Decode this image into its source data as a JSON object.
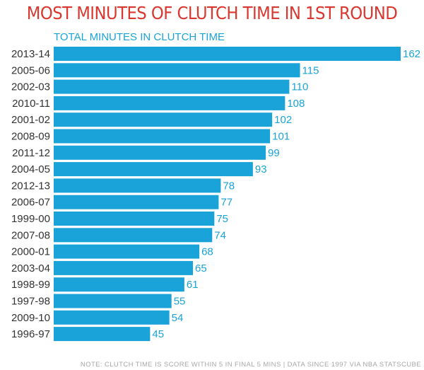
{
  "title": "MOST MINUTES OF CLUTCH TIME IN 1ST ROUND",
  "note": "NOTE: CLUTCH TIME IS SCORE WITHIN 5 IN FINAL 5 MINS | DATA SINCE 1997 VIA NBA STATSCUBE",
  "colors": {
    "title": "#d8382f",
    "bar": "#1aa3d9",
    "value_label": "#1aa3d9",
    "category_label": "#333333",
    "note": "#a8a8a8"
  },
  "chart_data": {
    "type": "bar",
    "orientation": "horizontal",
    "title": "MOST MINUTES OF CLUTCH TIME IN 1ST ROUND",
    "xlabel": "TOTAL MINUTES IN CLUTCH TIME",
    "ylabel": "",
    "categories": [
      "2013-14",
      "2005-06",
      "2002-03",
      "2010-11",
      "2001-02",
      "2008-09",
      "2011-12",
      "2004-05",
      "2012-13",
      "2006-07",
      "1999-00",
      "2007-08",
      "2000-01",
      "2003-04",
      "1998-99",
      "1997-98",
      "2009-10",
      "1996-97"
    ],
    "values": [
      162,
      115,
      110,
      108,
      102,
      101,
      99,
      93,
      78,
      77,
      75,
      74,
      68,
      65,
      61,
      55,
      54,
      45
    ],
    "xlim": [
      0,
      162
    ],
    "grid": false,
    "data_labels": true
  }
}
